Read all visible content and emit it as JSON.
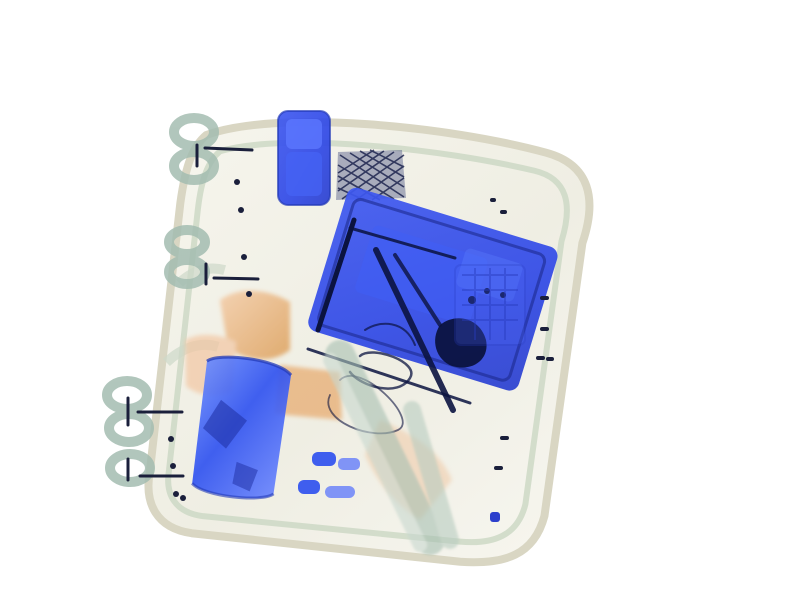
{
  "image": {
    "colors": {
      "background": "#ffffff",
      "bag_outline": "#d9d7c6",
      "bag_fill": "#f2f1e8",
      "organic_orange": "#d98f3e",
      "metal_blue": "#2f4ee6",
      "dense_navy": "#0b1340",
      "inorganic_green": "#8fb5a5"
    }
  }
}
